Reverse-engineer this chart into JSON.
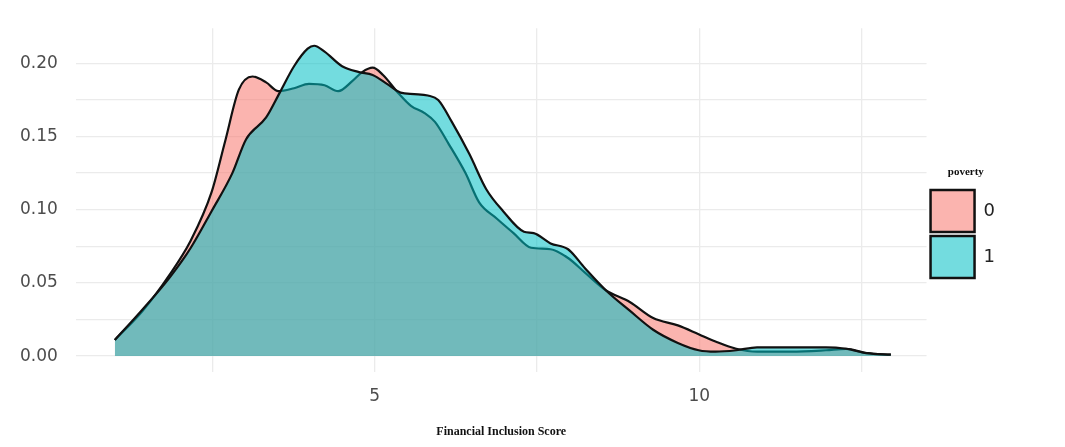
{
  "chart_data": {
    "type": "area",
    "xlabel": "Financial Inclusion Score",
    "legend_title": "poverty",
    "legend": "right",
    "grid": true,
    "marker": "none",
    "line_style": "solid",
    "xlim": [
      0.4,
      13.5
    ],
    "xticks": [
      {
        "value": 2.5,
        "label": null
      },
      5,
      {
        "value": 7.5,
        "label": null
      },
      10,
      {
        "value": 12.5,
        "label": null
      }
    ],
    "ylim": [
      -0.011,
      0.224
    ],
    "yticks": [
      {
        "value": 0,
        "label": "0.00"
      },
      {
        "value": 0.025,
        "label": null
      },
      {
        "value": 0.05,
        "label": "0.05"
      },
      {
        "value": 0.075,
        "label": null
      },
      {
        "value": 0.1,
        "label": "0.10"
      },
      {
        "value": 0.125,
        "label": null
      },
      {
        "value": 0.15,
        "label": "0.15"
      },
      {
        "value": 0.175,
        "label": null
      },
      {
        "value": 0.2,
        "label": "0.20"
      }
    ],
    "series": [
      {
        "name": "0",
        "color": "#f8766d",
        "x": [
          1.0,
          1.43,
          1.85,
          2.17,
          2.49,
          2.7,
          2.91,
          3.12,
          3.33,
          3.52,
          3.76,
          3.99,
          4.23,
          4.44,
          4.66,
          4.81,
          4.97,
          5.13,
          5.34,
          5.56,
          5.77,
          5.93,
          6.14,
          6.4,
          6.61,
          6.88,
          7.14,
          7.41,
          7.71,
          7.98,
          8.24,
          8.56,
          8.93,
          9.29,
          9.67,
          9.99,
          10.25,
          10.57,
          10.89,
          11.42,
          11.95,
          12.26,
          12.58,
          12.95
        ],
        "values": [
          0.011,
          0.031,
          0.056,
          0.079,
          0.112,
          0.147,
          0.182,
          0.191,
          0.187,
          0.181,
          0.183,
          0.186,
          0.185,
          0.181,
          0.188,
          0.194,
          0.197,
          0.192,
          0.181,
          0.171,
          0.166,
          0.16,
          0.145,
          0.125,
          0.105,
          0.094,
          0.084,
          0.074,
          0.073,
          0.067,
          0.057,
          0.045,
          0.037,
          0.026,
          0.021,
          0.015,
          0.01,
          0.005,
          0.003,
          0.003,
          0.004,
          0.005,
          0.002,
          0.001
        ]
      },
      {
        "name": "1",
        "color": "#00bfc4",
        "x": [
          1.0,
          1.43,
          1.85,
          2.17,
          2.49,
          2.81,
          3.02,
          3.33,
          3.54,
          3.76,
          3.97,
          4.07,
          4.23,
          4.5,
          4.76,
          4.97,
          5.19,
          5.4,
          5.61,
          5.82,
          5.98,
          6.19,
          6.46,
          6.72,
          6.98,
          7.3,
          7.45,
          7.71,
          7.98,
          8.24,
          8.56,
          8.93,
          9.29,
          9.67,
          9.99,
          10.25,
          10.57,
          10.89,
          11.42,
          11.95,
          12.26,
          12.58,
          12.95
        ],
        "values": [
          0.011,
          0.032,
          0.054,
          0.074,
          0.099,
          0.125,
          0.148,
          0.163,
          0.18,
          0.198,
          0.21,
          0.212,
          0.208,
          0.198,
          0.194,
          0.192,
          0.186,
          0.18,
          0.179,
          0.178,
          0.175,
          0.16,
          0.138,
          0.114,
          0.099,
          0.085,
          0.084,
          0.077,
          0.073,
          0.06,
          0.045,
          0.031,
          0.018,
          0.009,
          0.004,
          0.003,
          0.004,
          0.006,
          0.006,
          0.006,
          0.005,
          0.002,
          0.001
        ]
      }
    ]
  }
}
